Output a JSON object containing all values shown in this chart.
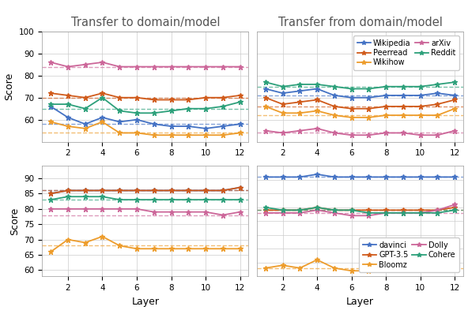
{
  "layers": [
    1,
    2,
    3,
    4,
    5,
    6,
    7,
    8,
    9,
    10,
    11,
    12
  ],
  "title_left": "Transfer to domain/model",
  "title_right": "Transfer from domain/model",
  "xlabel": "Layer",
  "ylabel": "Score",
  "domain_colors": {
    "Wikipedia": "#4472c4",
    "Wikihow": "#ed9c2b",
    "Peerread": "#d05a1a",
    "arXiv": "#cc6699",
    "Reddit": "#2ca07a"
  },
  "model_colors": {
    "davinci": "#4472c4",
    "Bloomz": "#ed9c2b",
    "GPT-3.5": "#d05a1a",
    "Dolly": "#cc6699",
    "Cohere": "#2ca07a"
  },
  "transfer_to_domain": {
    "Wikipedia": [
      66,
      61,
      58,
      61,
      59,
      60,
      58,
      57,
      57,
      56,
      57,
      58
    ],
    "Wikihow": [
      59,
      57,
      56,
      59,
      54,
      54,
      53,
      53,
      53,
      53,
      53,
      54
    ],
    "Peerread": [
      72,
      71,
      70,
      72,
      70,
      70,
      69,
      69,
      69,
      70,
      70,
      71
    ],
    "arXiv": [
      86,
      84,
      85,
      86,
      84,
      84,
      84,
      84,
      84,
      84,
      84,
      84
    ],
    "Reddit": [
      67,
      67,
      65,
      70,
      64,
      63,
      63,
      64,
      65,
      65,
      66,
      68
    ]
  },
  "transfer_to_domain_baseline": {
    "Wikipedia": 58,
    "Wikihow": 54,
    "Peerread": 70,
    "arXiv": 84,
    "Reddit": 65
  },
  "transfer_to_model": {
    "davinci": [
      85,
      86,
      86,
      86,
      86,
      86,
      86,
      86,
      86,
      86,
      86,
      87
    ],
    "Bloomz": [
      66,
      70,
      69,
      71,
      68,
      67,
      67,
      67,
      67,
      67,
      67,
      67
    ],
    "GPT-3.5": [
      85,
      86,
      86,
      86,
      86,
      86,
      86,
      86,
      86,
      86,
      86,
      87
    ],
    "Dolly": [
      80,
      80,
      80,
      80,
      80,
      80,
      79,
      79,
      79,
      79,
      78,
      79
    ],
    "Cohere": [
      83,
      84,
      84,
      84,
      83,
      83,
      83,
      83,
      83,
      83,
      83,
      83
    ]
  },
  "transfer_to_model_baseline": {
    "davinci": 86,
    "Bloomz": 68,
    "GPT-3.5": 86,
    "Dolly": 78,
    "Cohere": 83
  },
  "transfer_from_domain": {
    "Wikipedia": [
      74,
      72,
      73,
      74,
      71,
      70,
      70,
      71,
      71,
      71,
      72,
      71
    ],
    "Wikihow": [
      66,
      63,
      63,
      64,
      62,
      61,
      61,
      62,
      62,
      62,
      62,
      65
    ],
    "Peerread": [
      70,
      67,
      68,
      69,
      66,
      65,
      65,
      66,
      66,
      66,
      67,
      69
    ],
    "arXiv": [
      55,
      54,
      55,
      56,
      54,
      53,
      53,
      54,
      54,
      53,
      53,
      55
    ],
    "Reddit": [
      77,
      75,
      76,
      76,
      75,
      74,
      74,
      75,
      75,
      75,
      76,
      77
    ]
  },
  "transfer_from_domain_baseline": {
    "Wikipedia": 71,
    "Wikihow": 62,
    "Peerread": 66,
    "arXiv": 54,
    "Reddit": 75
  },
  "transfer_from_model": {
    "davinci": [
      91,
      91,
      91,
      92,
      91,
      91,
      91,
      91,
      91,
      91,
      91,
      91
    ],
    "Bloomz": [
      58,
      59,
      58,
      61,
      58,
      57,
      57,
      58,
      58,
      58,
      58,
      58
    ],
    "GPT-3.5": [
      79,
      79,
      79,
      80,
      79,
      79,
      79,
      79,
      79,
      79,
      79,
      80
    ],
    "Dolly": [
      78,
      78,
      78,
      79,
      78,
      77,
      77,
      78,
      78,
      78,
      79,
      81
    ],
    "Cohere": [
      80,
      79,
      79,
      80,
      79,
      79,
      78,
      78,
      78,
      78,
      78,
      79
    ]
  },
  "transfer_from_model_baseline": {
    "davinci": 91,
    "Bloomz": 58,
    "GPT-3.5": 79,
    "Dolly": 78,
    "Cohere": 79
  },
  "domain_legend_order": [
    "Wikipedia",
    "Peerread",
    "Wikihow",
    "arXiv",
    "Reddit"
  ],
  "model_legend_order": [
    "davinci",
    "GPT-3.5",
    "Bloomz",
    "Dolly",
    "Cohere"
  ]
}
